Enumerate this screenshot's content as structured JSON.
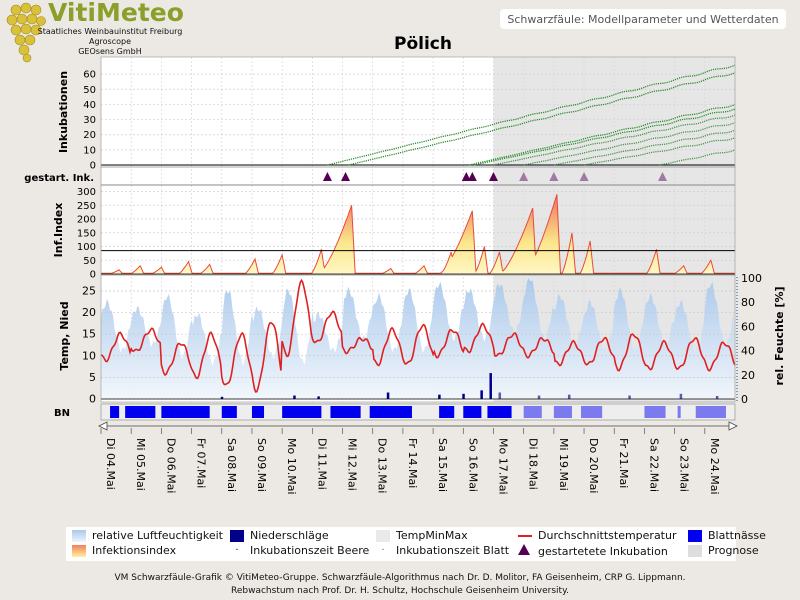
{
  "brand": {
    "name": "VitiMeteo",
    "lines": [
      "Staatliches Weinbauinstitut Freiburg",
      "Agroscope",
      "GEOsens GmbH"
    ]
  },
  "header_title": "Schwarzfäule: Modellparameter und Wetterdaten",
  "station": "Pölich",
  "colors": {
    "humidity": "#b9d3ee",
    "precip": "#00008b",
    "temp_line": "#e02020",
    "leaf_wet": "#0000ee",
    "leaf_wet_forecast": "#7b7bef",
    "incubation": "#2a8a2a",
    "forecast_shade": "#dedede",
    "marker": "#550055"
  },
  "chart_data": [
    {
      "panel": "Inkubationen",
      "type": "line",
      "ylabel": "Inkubationen",
      "ylim": [
        0,
        70
      ],
      "yticks": [
        0,
        10,
        20,
        30,
        40,
        50,
        60
      ],
      "x_dates": [
        "Di 04.Mai",
        "Mi 05.Mai",
        "Do 06.Mai",
        "Fr 07.Mai",
        "Sa 08.Mai",
        "So 09.Mai",
        "Mo 10.Mai",
        "Di 11.Mai",
        "Mi 12.Mai",
        "Do 13.Mai",
        "Fr 14.Mai",
        "Sa 15.Mai",
        "So 16.Mai",
        "Mo 17.Mai",
        "Di 18.Mai",
        "Mi 19.Mai",
        "Do 20.Mai",
        "Fr 21.Mai",
        "Sa 22.Mai",
        "So 23.Mai",
        "Mo 24.Mai"
      ],
      "forecast_from_day": 13,
      "series": [
        {
          "start_day": 7.5,
          "end_value": 66
        },
        {
          "start_day": 8.2,
          "end_value": 61
        },
        {
          "start_day": 12.2,
          "end_value": 40
        },
        {
          "start_day": 12.35,
          "end_value": 37
        },
        {
          "start_day": 13.0,
          "end_value": 33
        },
        {
          "start_day": 14.0,
          "end_value": 28
        },
        {
          "start_day": 15.0,
          "end_value": 23
        },
        {
          "start_day": 16.0,
          "end_value": 18
        },
        {
          "start_day": 18.5,
          "end_value": 10
        }
      ]
    },
    {
      "panel": "gestart. Ink.",
      "type": "scatter",
      "ylabel": "gestart. Ink.",
      "marker_days": [
        7.5,
        8.1,
        12.1,
        12.3,
        13.0,
        14.0,
        15.0,
        16.0,
        18.6
      ],
      "forecast_marker_days": [
        14.0,
        15.0,
        16.0,
        18.6
      ]
    },
    {
      "panel": "Inf.Index",
      "type": "area",
      "ylabel": "Inf.Index",
      "ylim": [
        0,
        320
      ],
      "yticks": [
        0,
        50,
        100,
        150,
        200,
        250,
        300
      ],
      "threshold": 85,
      "peaks": [
        {
          "day": 0.6,
          "value": 15
        },
        {
          "day": 1.3,
          "value": 30
        },
        {
          "day": 2.0,
          "value": 25
        },
        {
          "day": 2.9,
          "value": 45
        },
        {
          "day": 3.6,
          "value": 35
        },
        {
          "day": 5.1,
          "value": 55
        },
        {
          "day": 6.0,
          "value": 70
        },
        {
          "day": 7.3,
          "value": 90
        },
        {
          "day": 8.3,
          "value": 250
        },
        {
          "day": 9.6,
          "value": 20
        },
        {
          "day": 10.7,
          "value": 30
        },
        {
          "day": 11.6,
          "value": 80
        },
        {
          "day": 12.3,
          "value": 230
        },
        {
          "day": 12.7,
          "value": 100
        },
        {
          "day": 13.2,
          "value": 80
        },
        {
          "day": 14.3,
          "value": 240
        },
        {
          "day": 15.1,
          "value": 290
        },
        {
          "day": 15.6,
          "value": 150
        },
        {
          "day": 16.2,
          "value": 120
        },
        {
          "day": 18.4,
          "value": 90
        },
        {
          "day": 19.3,
          "value": 30
        },
        {
          "day": 20.2,
          "value": 50
        }
      ]
    },
    {
      "panel": "Temperatur",
      "type": "line",
      "ylabel": "Temp, Nied",
      "ylabel_right": "rel. Feuchte [%]",
      "ylim": [
        0,
        28
      ],
      "yticks": [
        0,
        5,
        10,
        15,
        20,
        25
      ],
      "ylim_right": [
        0,
        100
      ],
      "yticks_right": [
        0,
        20,
        40,
        60,
        80,
        100
      ],
      "daily_temp": [
        {
          "min": 9,
          "max": 15
        },
        {
          "min": 11,
          "max": 16
        },
        {
          "min": 6,
          "max": 13
        },
        {
          "min": 5,
          "max": 15
        },
        {
          "min": 3,
          "max": 15
        },
        {
          "min": 2,
          "max": 18
        },
        {
          "min": 10,
          "max": 27
        },
        {
          "min": 13,
          "max": 20
        },
        {
          "min": 11,
          "max": 14
        },
        {
          "min": 8,
          "max": 16
        },
        {
          "min": 8,
          "max": 17
        },
        {
          "min": 10,
          "max": 16
        },
        {
          "min": 11,
          "max": 17
        },
        {
          "min": 10,
          "max": 15
        },
        {
          "min": 10,
          "max": 14
        },
        {
          "min": 8,
          "max": 13
        },
        {
          "min": 8,
          "max": 14
        },
        {
          "min": 7,
          "max": 15
        },
        {
          "min": 7,
          "max": 13
        },
        {
          "min": 7,
          "max": 14
        },
        {
          "min": 7,
          "max": 13
        }
      ],
      "humidity_daily_max": [
        80,
        75,
        85,
        70,
        90,
        75,
        90,
        70,
        90,
        85,
        90,
        95,
        90,
        95,
        100,
        85,
        80,
        90,
        85,
        80,
        95
      ],
      "humidity_daily_min": [
        40,
        45,
        35,
        30,
        30,
        35,
        30,
        40,
        50,
        40,
        40,
        50,
        50,
        55,
        50,
        45,
        40,
        40,
        45,
        40,
        45
      ],
      "precip_days": [
        {
          "day": 4.0,
          "value": 0.5
        },
        {
          "day": 6.4,
          "value": 0.8
        },
        {
          "day": 7.2,
          "value": 0.6
        },
        {
          "day": 9.5,
          "value": 1.5
        },
        {
          "day": 11.2,
          "value": 1.0
        },
        {
          "day": 12.0,
          "value": 1.2
        },
        {
          "day": 12.6,
          "value": 2.0
        },
        {
          "day": 12.9,
          "value": 6.0
        },
        {
          "day": 13.2,
          "value": 1.5
        },
        {
          "day": 14.5,
          "value": 0.8
        },
        {
          "day": 15.5,
          "value": 1.0
        },
        {
          "day": 17.5,
          "value": 0.8
        },
        {
          "day": 19.2,
          "value": 1.2
        },
        {
          "day": 20.4,
          "value": 0.7
        }
      ]
    },
    {
      "panel": "BN",
      "type": "heatmap",
      "ylabel": "BN",
      "wet_intervals": [
        [
          0.3,
          0.6
        ],
        [
          0.8,
          1.8
        ],
        [
          2.0,
          3.6
        ],
        [
          4.0,
          4.5
        ],
        [
          5.0,
          5.4
        ],
        [
          6.0,
          7.3
        ],
        [
          7.6,
          8.6
        ],
        [
          8.9,
          10.3
        ],
        [
          11.2,
          11.7
        ],
        [
          12.0,
          12.6
        ],
        [
          12.8,
          13.6
        ],
        [
          14.0,
          14.6
        ],
        [
          15.0,
          15.6
        ],
        [
          15.9,
          16.6
        ],
        [
          18.0,
          18.7
        ],
        [
          19.1,
          19.2
        ],
        [
          19.7,
          20.7
        ]
      ]
    }
  ],
  "legend": [
    {
      "key": "humidity",
      "label": "relative Luftfeuchtigkeit"
    },
    {
      "key": "precip",
      "label": "Niederschläge"
    },
    {
      "key": "tempminmax",
      "label": "TempMinMax"
    },
    {
      "key": "temp_line",
      "label": "Durchschnittstemperatur"
    },
    {
      "key": "leaf_wet",
      "label": "Blattnässe"
    },
    {
      "key": "infection",
      "label": "Infektionsindex"
    },
    {
      "key": "incub_berry",
      "label": "Inkubationszeit Beere"
    },
    {
      "key": "incub_leaf",
      "label": "Inkubationszeit Blatt"
    },
    {
      "key": "marker",
      "label": "gestartetete Inkubation"
    },
    {
      "key": "forecast",
      "label": "Prognose"
    }
  ],
  "footer": [
    "VM Schwarzfäule-Grafik © VitiMeteo-Gruppe. Schwarzfäule-Algorithmus nach Dr. D. Molitor, FA Geisenheim, CRP G. Lippmann.",
    "Rebwachstum nach Prof. Dr. H. Schultz, Hochschule Geisenheim University."
  ]
}
